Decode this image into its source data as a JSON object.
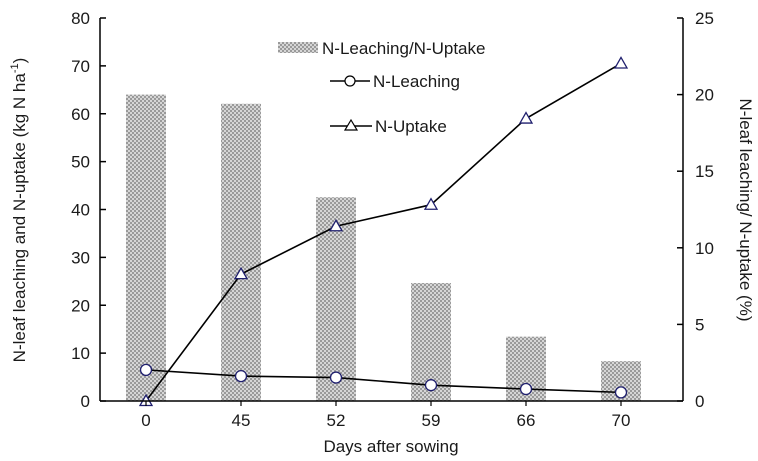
{
  "chart_data": {
    "type": "bar+line",
    "categories": [
      "0",
      "45",
      "52",
      "59",
      "66",
      "70"
    ],
    "xlabel": "Days after sowing",
    "ylabel_left": "N-leaf leaching and N-uptake (kg N ha",
    "ylabel_left_sup": "-1",
    "ylabel_left_close": ")",
    "ylabel_right": "N-leaf leaching/ N-uptake (%)",
    "ylim_left": [
      0,
      80
    ],
    "yticks_left": [
      0,
      10,
      20,
      30,
      40,
      50,
      60,
      70,
      80
    ],
    "ylim_right": [
      0,
      25
    ],
    "yticks_right": [
      0,
      5,
      10,
      15,
      20,
      25
    ],
    "grid": false,
    "legend_position": "top-right",
    "series": [
      {
        "name": "N-Leaching/N-Uptake",
        "kind": "bar",
        "axis": "right",
        "color": "#b5b5b5",
        "values": [
          20.0,
          19.4,
          13.3,
          7.7,
          4.2,
          2.6
        ]
      },
      {
        "name": "N-Leaching",
        "kind": "line",
        "marker": "circle",
        "axis": "left",
        "values": [
          6.5,
          5.2,
          4.9,
          3.3,
          2.5,
          1.8
        ]
      },
      {
        "name": "N-Uptake",
        "kind": "line",
        "marker": "triangle",
        "axis": "left",
        "values": [
          0,
          26.5,
          36.5,
          41,
          59,
          70.5
        ]
      }
    ]
  }
}
